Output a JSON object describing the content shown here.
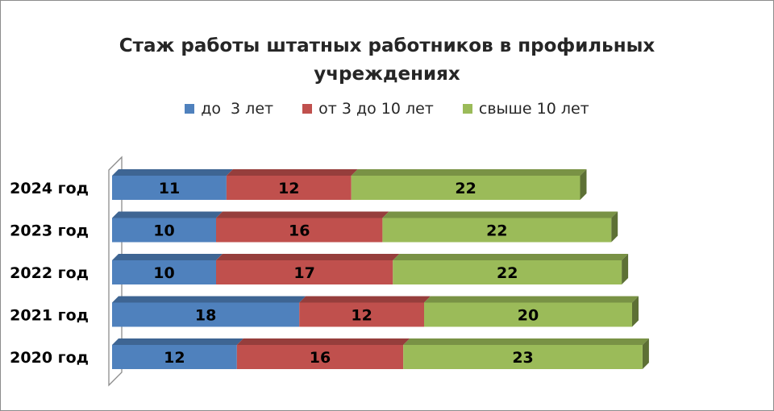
{
  "chart_data": {
    "type": "bar",
    "orientation": "horizontal",
    "stacked": true,
    "style": "3d",
    "title": "Стаж работы штатных работников в профильных учреждениях",
    "title_lines": [
      "Стаж работы штатных работников в профильных",
      "учреждениях"
    ],
    "categories": [
      "2024 год",
      "2023 год",
      "2022 год",
      "2021 год",
      "2020 год"
    ],
    "series": [
      {
        "name": "до  3 лет",
        "color": "#4f81bd",
        "values": [
          11,
          10,
          10,
          18,
          12
        ]
      },
      {
        "name": "от 3 до 10 лет",
        "color": "#c0504d",
        "values": [
          12,
          16,
          17,
          12,
          16
        ]
      },
      {
        "name": "свыше 10 лет",
        "color": "#9bbb59",
        "values": [
          22,
          22,
          22,
          20,
          23
        ]
      }
    ],
    "xlim": [
      0,
      52
    ],
    "xlabel": "",
    "ylabel": "",
    "grid": false,
    "legend_position": "top",
    "data_labels": true
  }
}
